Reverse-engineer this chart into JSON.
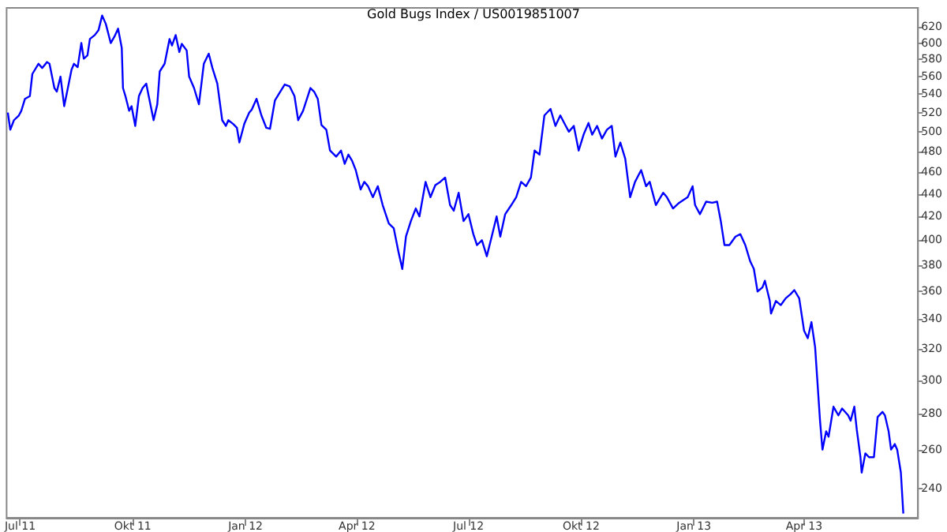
{
  "chart_data": {
    "type": "line",
    "title": "Gold Bugs Index / US0019851007",
    "color": "#0000ff",
    "log": "y",
    "grid": false,
    "marker": "none",
    "line_style": "solid",
    "xlim": [
      "2011-06-20",
      "2013-07-03"
    ],
    "xticks": [
      {
        "value": "2011-07-01",
        "label": "Jul 11"
      },
      {
        "value": "2011-10-01",
        "label": "Okt 11"
      },
      {
        "value": "2012-01-01",
        "label": "Jan 12"
      },
      {
        "value": "2012-04-01",
        "label": "Apr 12"
      },
      {
        "value": "2012-07-01",
        "label": "Jul 12"
      },
      {
        "value": "2012-10-01",
        "label": "Okt 12"
      },
      {
        "value": "2013-01-01",
        "label": "Jan 13"
      },
      {
        "value": "2013-04-01",
        "label": "Apr 13"
      }
    ],
    "ylim": [
      226,
      645
    ],
    "yticks": [
      240,
      260,
      280,
      300,
      320,
      340,
      360,
      380,
      400,
      420,
      440,
      460,
      480,
      500,
      520,
      540,
      560,
      580,
      600,
      620
    ],
    "x": [
      "2011-06-21",
      "2011-06-23",
      "2011-06-26",
      "2011-06-30",
      "2011-07-02",
      "2011-07-05",
      "2011-07-09",
      "2011-07-11",
      "2011-07-16",
      "2011-07-19",
      "2011-07-23",
      "2011-07-25",
      "2011-07-29",
      "2011-07-31",
      "2011-08-03",
      "2011-08-06",
      "2011-08-09",
      "2011-08-12",
      "2011-08-14",
      "2011-08-17",
      "2011-08-20",
      "2011-08-22",
      "2011-08-25",
      "2011-08-27",
      "2011-08-31",
      "2011-09-03",
      "2011-09-06",
      "2011-09-09",
      "2011-09-13",
      "2011-09-16",
      "2011-09-19",
      "2011-09-22",
      "2011-09-23",
      "2011-09-25",
      "2011-09-28",
      "2011-09-30",
      "2011-10-03",
      "2011-10-06",
      "2011-10-09",
      "2011-10-12",
      "2011-10-14",
      "2011-10-18",
      "2011-10-21",
      "2011-10-23",
      "2011-10-27",
      "2011-10-31",
      "2011-11-02",
      "2011-11-05",
      "2011-11-08",
      "2011-11-10",
      "2011-11-14",
      "2011-11-16",
      "2011-11-20",
      "2011-11-24",
      "2011-11-28",
      "2011-12-02",
      "2011-12-05",
      "2011-12-09",
      "2011-12-13",
      "2011-12-16",
      "2011-12-18",
      "2011-12-22",
      "2011-12-25",
      "2011-12-27",
      "2011-12-31",
      "2012-01-04",
      "2012-01-06",
      "2012-01-10",
      "2012-01-14",
      "2012-01-18",
      "2012-01-21",
      "2012-01-25",
      "2012-01-29",
      "2012-02-02",
      "2012-02-06",
      "2012-02-10",
      "2012-02-13",
      "2012-02-17",
      "2012-02-23",
      "2012-02-26",
      "2012-02-29",
      "2012-03-03",
      "2012-03-07",
      "2012-03-10",
      "2012-03-15",
      "2012-03-19",
      "2012-03-22",
      "2012-03-25",
      "2012-03-28",
      "2012-03-31",
      "2012-04-04",
      "2012-04-07",
      "2012-04-10",
      "2012-04-14",
      "2012-04-18",
      "2012-04-22",
      "2012-04-27",
      "2012-05-01",
      "2012-05-05",
      "2012-05-08",
      "2012-05-11",
      "2012-05-15",
      "2012-05-19",
      "2012-05-22",
      "2012-05-27",
      "2012-05-31",
      "2012-06-04",
      "2012-06-08",
      "2012-06-12",
      "2012-06-16",
      "2012-06-19",
      "2012-06-23",
      "2012-06-27",
      "2012-07-01",
      "2012-07-05",
      "2012-07-08",
      "2012-07-12",
      "2012-07-16",
      "2012-07-20",
      "2012-07-24",
      "2012-07-27",
      "2012-07-31",
      "2012-08-05",
      "2012-08-09",
      "2012-08-13",
      "2012-08-17",
      "2012-08-21",
      "2012-08-24",
      "2012-08-28",
      "2012-09-01",
      "2012-09-06",
      "2012-09-10",
      "2012-09-14",
      "2012-09-18",
      "2012-09-21",
      "2012-09-25",
      "2012-09-29",
      "2012-10-03",
      "2012-10-07",
      "2012-10-10",
      "2012-10-14",
      "2012-10-18",
      "2012-10-22",
      "2012-10-26",
      "2012-10-29",
      "2012-11-02",
      "2012-11-06",
      "2012-11-10",
      "2012-11-14",
      "2012-11-19",
      "2012-11-23",
      "2012-11-26",
      "2012-12-01",
      "2012-12-07",
      "2012-12-10",
      "2012-12-15",
      "2012-12-20",
      "2012-12-27",
      "2012-12-31",
      "2013-01-02",
      "2013-01-06",
      "2013-01-11",
      "2013-01-16",
      "2013-01-20",
      "2013-01-23",
      "2013-01-26",
      "2013-01-30",
      "2013-02-04",
      "2013-02-08",
      "2013-02-12",
      "2013-02-16",
      "2013-02-19",
      "2013-02-22",
      "2013-02-26",
      "2013-02-28",
      "2013-03-04",
      "2013-03-05",
      "2013-03-09",
      "2013-03-13",
      "2013-03-17",
      "2013-03-21",
      "2013-03-24",
      "2013-03-28",
      "2013-04-01",
      "2013-04-04",
      "2013-04-07",
      "2013-04-10",
      "2013-04-14",
      "2013-04-16",
      "2013-04-19",
      "2013-04-21",
      "2013-04-25",
      "2013-04-29",
      "2013-05-02",
      "2013-05-07",
      "2013-05-09",
      "2013-05-12",
      "2013-05-14",
      "2013-05-17",
      "2013-05-18",
      "2013-05-21",
      "2013-05-24",
      "2013-05-28",
      "2013-05-31",
      "2013-06-04",
      "2013-06-06",
      "2013-06-09",
      "2013-06-11",
      "2013-06-14",
      "2013-06-16",
      "2013-06-19",
      "2013-06-21"
    ],
    "values": [
      520,
      502,
      512,
      517,
      522,
      535,
      538,
      563,
      575,
      570,
      577,
      575,
      547,
      543,
      560,
      527,
      547,
      568,
      575,
      571,
      600,
      581,
      585,
      605,
      610,
      616,
      635,
      624,
      600,
      608,
      618,
      594,
      547,
      538,
      522,
      527,
      506,
      538,
      547,
      552,
      538,
      512,
      529,
      566,
      575,
      605,
      597,
      610,
      589,
      599,
      591,
      560,
      547,
      529,
      575,
      587,
      570,
      552,
      512,
      506,
      512,
      508,
      504,
      489,
      508,
      520,
      523,
      535,
      517,
      504,
      503,
      533,
      542,
      551,
      549,
      538,
      512,
      522,
      547,
      543,
      535,
      507,
      502,
      481,
      475,
      481,
      468,
      477,
      471,
      462,
      444,
      451,
      447,
      437,
      447,
      430,
      414,
      410,
      390,
      377,
      403,
      416,
      427,
      420,
      451,
      437,
      448,
      451,
      455,
      430,
      425,
      441,
      416,
      422,
      405,
      396,
      400,
      387,
      403,
      420,
      403,
      422,
      430,
      437,
      451,
      447,
      455,
      481,
      477,
      517,
      524,
      506,
      517,
      507,
      500,
      506,
      481,
      497,
      509,
      497,
      506,
      493,
      502,
      506,
      475,
      489,
      473,
      437,
      451,
      462,
      447,
      451,
      430,
      441,
      437,
      427,
      432,
      437,
      447,
      430,
      422,
      433,
      432,
      433,
      416,
      396,
      396,
      403,
      405,
      396,
      383,
      377,
      360,
      363,
      368,
      353,
      344,
      353,
      350,
      355,
      358,
      361,
      355,
      332,
      327,
      338,
      321,
      276,
      260,
      270,
      267,
      284,
      279,
      283,
      279,
      276,
      284,
      271,
      256,
      248,
      258,
      256,
      256,
      278,
      281,
      279,
      270,
      260,
      263,
      260,
      248,
      228
    ]
  }
}
